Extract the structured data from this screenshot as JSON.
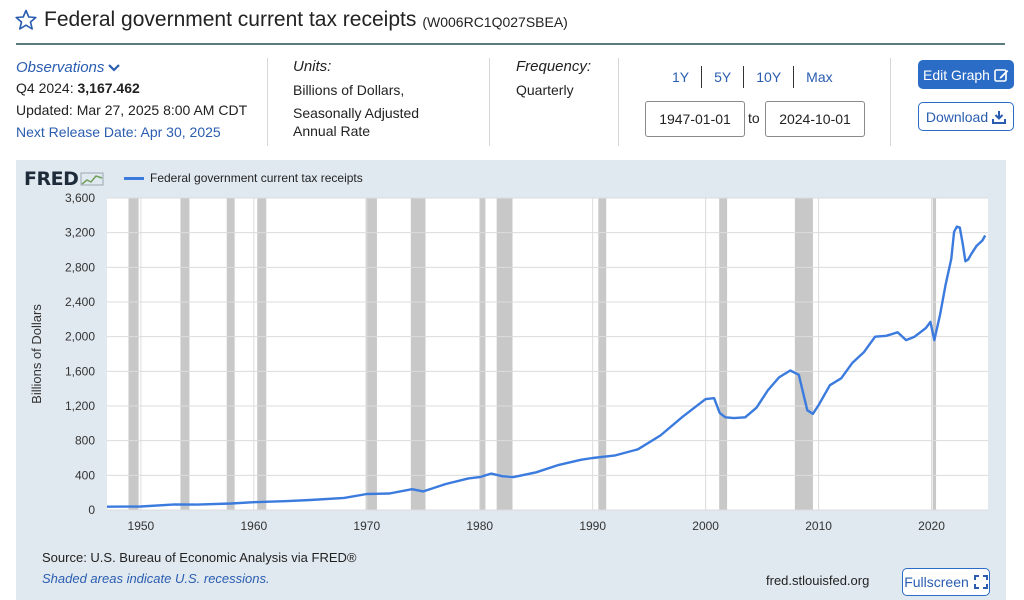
{
  "header": {
    "title": "Federal government current tax receipts",
    "series_id": "(W006RC1Q027SBEA)"
  },
  "observations": {
    "label": "Observations",
    "latest_period": "Q4 2024:",
    "latest_value": "3,167.462",
    "updated": "Updated: Mar 27, 2025 8:00 AM CDT",
    "next_release": "Next Release Date: Apr 30, 2025"
  },
  "units": {
    "heading": "Units:",
    "line1": "Billions of Dollars,",
    "line2": "Seasonally Adjusted",
    "line3": "Annual Rate"
  },
  "frequency": {
    "heading": "Frequency:",
    "value": "Quarterly"
  },
  "range": {
    "buttons": [
      "1Y",
      "5Y",
      "10Y",
      "Max"
    ],
    "start": "1947-01-01",
    "to_label": "to",
    "end": "2024-10-01"
  },
  "actions": {
    "edit_graph": "Edit Graph",
    "download": "Download",
    "fullscreen": "Fullscreen"
  },
  "footer": {
    "source": "Source: U.S. Bureau of Economic Analysis via FRED®",
    "shaded_note": "Shaded areas indicate U.S. recessions.",
    "url": "fred.stlouisfed.org"
  },
  "logo": {
    "text": "FRED"
  },
  "colors": {
    "line": "#3b7bde",
    "recession": "#c8c8c8",
    "panel": "#e1e9f0",
    "accent": "#2a6cc6"
  },
  "icons": [
    "star-icon",
    "chevron-down-icon",
    "edit-icon",
    "download-icon",
    "fullscreen-icon",
    "fred-graph-icon"
  ],
  "chart_data": {
    "type": "line",
    "title": "",
    "legend": [
      "Federal government current tax receipts"
    ],
    "legend_placement": "top-left",
    "xlabel": "",
    "ylabel": "Billions of Dollars",
    "xlim": [
      1947.0,
      2025.0
    ],
    "ylim": [
      0,
      3600
    ],
    "yticks": [
      0,
      400,
      800,
      1200,
      1600,
      2000,
      2400,
      2800,
      3200,
      3600
    ],
    "ytick_labels": [
      "0",
      "400",
      "800",
      "1,200",
      "1,600",
      "2,000",
      "2,400",
      "2,800",
      "3,200",
      "3,600"
    ],
    "xticks": [
      1950,
      1960,
      1970,
      1980,
      1990,
      2000,
      2010,
      2020
    ],
    "xtick_labels": [
      "1950",
      "1960",
      "1970",
      "1980",
      "1990",
      "2000",
      "2010",
      "2020"
    ],
    "grid": true,
    "recessions": [
      [
        1948.9,
        1949.8
      ],
      [
        1953.5,
        1954.3
      ],
      [
        1957.6,
        1958.3
      ],
      [
        1960.3,
        1961.1
      ],
      [
        1969.9,
        1970.9
      ],
      [
        1973.9,
        1975.2
      ],
      [
        1980.0,
        1980.5
      ],
      [
        1981.5,
        1982.9
      ],
      [
        1990.5,
        1991.2
      ],
      [
        2001.2,
        2001.9
      ],
      [
        2007.9,
        2009.5
      ],
      [
        2020.1,
        2020.4
      ]
    ],
    "series": [
      {
        "name": "Federal government current tax receipts",
        "x": [
          1947,
          1950,
          1953,
          1955,
          1958,
          1960,
          1963,
          1965,
          1968,
          1970,
          1972,
          1974,
          1975,
          1977,
          1979,
          1980,
          1981,
          1982,
          1983,
          1985,
          1987,
          1989,
          1990,
          1991,
          1992,
          1994,
          1996,
          1998,
          2000,
          2000.75,
          2001.25,
          2001.75,
          2002.5,
          2003.5,
          2004.5,
          2005.5,
          2006.5,
          2007.5,
          2008.25,
          2009,
          2009.5,
          2010,
          2011,
          2012,
          2013,
          2014,
          2015,
          2016,
          2017,
          2017.75,
          2018.5,
          2019.5,
          2019.9,
          2020.25,
          2020.75,
          2021.25,
          2021.75,
          2022.0,
          2022.25,
          2022.5,
          2022.75,
          2023.0,
          2023.25,
          2023.5,
          2024.0,
          2024.5,
          2024.75
        ],
        "values": [
          38,
          40,
          65,
          62,
          75,
          90,
          103,
          115,
          140,
          185,
          190,
          240,
          215,
          300,
          365,
          380,
          420,
          390,
          380,
          435,
          520,
          580,
          600,
          615,
          630,
          700,
          860,
          1080,
          1280,
          1290,
          1120,
          1070,
          1060,
          1070,
          1180,
          1380,
          1530,
          1610,
          1560,
          1150,
          1110,
          1210,
          1440,
          1520,
          1700,
          1820,
          2000,
          2010,
          2050,
          1960,
          2000,
          2100,
          2170,
          1960,
          2250,
          2600,
          2900,
          3210,
          3270,
          3260,
          3080,
          2870,
          2890,
          2950,
          3050,
          3110,
          3167
        ]
      }
    ]
  }
}
